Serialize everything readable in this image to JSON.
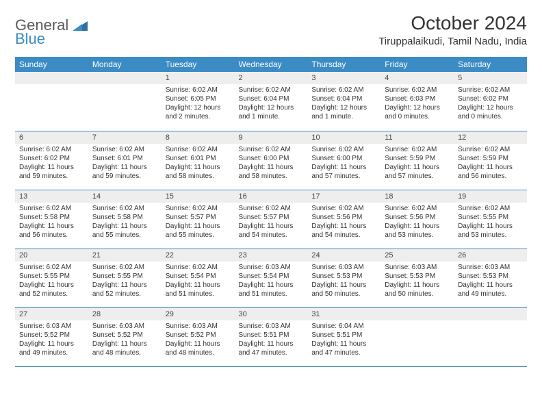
{
  "logo": {
    "part1": "General",
    "part2": "Blue"
  },
  "title": "October 2024",
  "location": "Tiruppalaikudi, Tamil Nadu, India",
  "colors": {
    "header_bg": "#3b8bc4",
    "header_text": "#ffffff",
    "daynum_bg": "#eeeeee",
    "border": "#3b8bc4",
    "body_text": "#333333"
  },
  "day_headers": [
    "Sunday",
    "Monday",
    "Tuesday",
    "Wednesday",
    "Thursday",
    "Friday",
    "Saturday"
  ],
  "weeks": [
    [
      null,
      null,
      {
        "n": "1",
        "sr": "Sunrise: 6:02 AM",
        "ss": "Sunset: 6:05 PM",
        "dl": "Daylight: 12 hours and 2 minutes."
      },
      {
        "n": "2",
        "sr": "Sunrise: 6:02 AM",
        "ss": "Sunset: 6:04 PM",
        "dl": "Daylight: 12 hours and 1 minute."
      },
      {
        "n": "3",
        "sr": "Sunrise: 6:02 AM",
        "ss": "Sunset: 6:04 PM",
        "dl": "Daylight: 12 hours and 1 minute."
      },
      {
        "n": "4",
        "sr": "Sunrise: 6:02 AM",
        "ss": "Sunset: 6:03 PM",
        "dl": "Daylight: 12 hours and 0 minutes."
      },
      {
        "n": "5",
        "sr": "Sunrise: 6:02 AM",
        "ss": "Sunset: 6:02 PM",
        "dl": "Daylight: 12 hours and 0 minutes."
      }
    ],
    [
      {
        "n": "6",
        "sr": "Sunrise: 6:02 AM",
        "ss": "Sunset: 6:02 PM",
        "dl": "Daylight: 11 hours and 59 minutes."
      },
      {
        "n": "7",
        "sr": "Sunrise: 6:02 AM",
        "ss": "Sunset: 6:01 PM",
        "dl": "Daylight: 11 hours and 59 minutes."
      },
      {
        "n": "8",
        "sr": "Sunrise: 6:02 AM",
        "ss": "Sunset: 6:01 PM",
        "dl": "Daylight: 11 hours and 58 minutes."
      },
      {
        "n": "9",
        "sr": "Sunrise: 6:02 AM",
        "ss": "Sunset: 6:00 PM",
        "dl": "Daylight: 11 hours and 58 minutes."
      },
      {
        "n": "10",
        "sr": "Sunrise: 6:02 AM",
        "ss": "Sunset: 6:00 PM",
        "dl": "Daylight: 11 hours and 57 minutes."
      },
      {
        "n": "11",
        "sr": "Sunrise: 6:02 AM",
        "ss": "Sunset: 5:59 PM",
        "dl": "Daylight: 11 hours and 57 minutes."
      },
      {
        "n": "12",
        "sr": "Sunrise: 6:02 AM",
        "ss": "Sunset: 5:59 PM",
        "dl": "Daylight: 11 hours and 56 minutes."
      }
    ],
    [
      {
        "n": "13",
        "sr": "Sunrise: 6:02 AM",
        "ss": "Sunset: 5:58 PM",
        "dl": "Daylight: 11 hours and 56 minutes."
      },
      {
        "n": "14",
        "sr": "Sunrise: 6:02 AM",
        "ss": "Sunset: 5:58 PM",
        "dl": "Daylight: 11 hours and 55 minutes."
      },
      {
        "n": "15",
        "sr": "Sunrise: 6:02 AM",
        "ss": "Sunset: 5:57 PM",
        "dl": "Daylight: 11 hours and 55 minutes."
      },
      {
        "n": "16",
        "sr": "Sunrise: 6:02 AM",
        "ss": "Sunset: 5:57 PM",
        "dl": "Daylight: 11 hours and 54 minutes."
      },
      {
        "n": "17",
        "sr": "Sunrise: 6:02 AM",
        "ss": "Sunset: 5:56 PM",
        "dl": "Daylight: 11 hours and 54 minutes."
      },
      {
        "n": "18",
        "sr": "Sunrise: 6:02 AM",
        "ss": "Sunset: 5:56 PM",
        "dl": "Daylight: 11 hours and 53 minutes."
      },
      {
        "n": "19",
        "sr": "Sunrise: 6:02 AM",
        "ss": "Sunset: 5:55 PM",
        "dl": "Daylight: 11 hours and 53 minutes."
      }
    ],
    [
      {
        "n": "20",
        "sr": "Sunrise: 6:02 AM",
        "ss": "Sunset: 5:55 PM",
        "dl": "Daylight: 11 hours and 52 minutes."
      },
      {
        "n": "21",
        "sr": "Sunrise: 6:02 AM",
        "ss": "Sunset: 5:55 PM",
        "dl": "Daylight: 11 hours and 52 minutes."
      },
      {
        "n": "22",
        "sr": "Sunrise: 6:02 AM",
        "ss": "Sunset: 5:54 PM",
        "dl": "Daylight: 11 hours and 51 minutes."
      },
      {
        "n": "23",
        "sr": "Sunrise: 6:03 AM",
        "ss": "Sunset: 5:54 PM",
        "dl": "Daylight: 11 hours and 51 minutes."
      },
      {
        "n": "24",
        "sr": "Sunrise: 6:03 AM",
        "ss": "Sunset: 5:53 PM",
        "dl": "Daylight: 11 hours and 50 minutes."
      },
      {
        "n": "25",
        "sr": "Sunrise: 6:03 AM",
        "ss": "Sunset: 5:53 PM",
        "dl": "Daylight: 11 hours and 50 minutes."
      },
      {
        "n": "26",
        "sr": "Sunrise: 6:03 AM",
        "ss": "Sunset: 5:53 PM",
        "dl": "Daylight: 11 hours and 49 minutes."
      }
    ],
    [
      {
        "n": "27",
        "sr": "Sunrise: 6:03 AM",
        "ss": "Sunset: 5:52 PM",
        "dl": "Daylight: 11 hours and 49 minutes."
      },
      {
        "n": "28",
        "sr": "Sunrise: 6:03 AM",
        "ss": "Sunset: 5:52 PM",
        "dl": "Daylight: 11 hours and 48 minutes."
      },
      {
        "n": "29",
        "sr": "Sunrise: 6:03 AM",
        "ss": "Sunset: 5:52 PM",
        "dl": "Daylight: 11 hours and 48 minutes."
      },
      {
        "n": "30",
        "sr": "Sunrise: 6:03 AM",
        "ss": "Sunset: 5:51 PM",
        "dl": "Daylight: 11 hours and 47 minutes."
      },
      {
        "n": "31",
        "sr": "Sunrise: 6:04 AM",
        "ss": "Sunset: 5:51 PM",
        "dl": "Daylight: 11 hours and 47 minutes."
      },
      null,
      null
    ]
  ]
}
